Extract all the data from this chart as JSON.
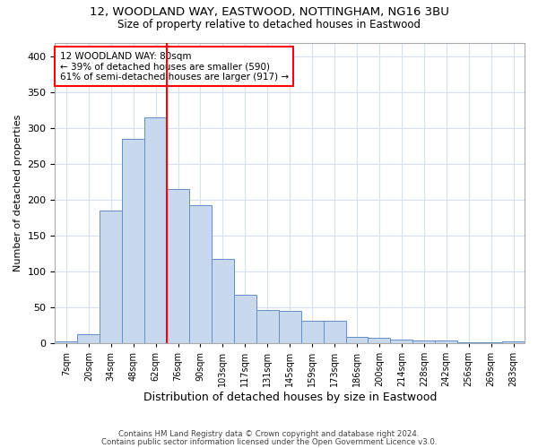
{
  "title_line1": "12, WOODLAND WAY, EASTWOOD, NOTTINGHAM, NG16 3BU",
  "title_line2": "Size of property relative to detached houses in Eastwood",
  "xlabel": "Distribution of detached houses by size in Eastwood",
  "ylabel": "Number of detached properties",
  "footer_line1": "Contains HM Land Registry data © Crown copyright and database right 2024.",
  "footer_line2": "Contains public sector information licensed under the Open Government Licence v3.0.",
  "bin_labels": [
    "7sqm",
    "20sqm",
    "34sqm",
    "48sqm",
    "62sqm",
    "76sqm",
    "90sqm",
    "103sqm",
    "117sqm",
    "131sqm",
    "145sqm",
    "159sqm",
    "173sqm",
    "186sqm",
    "200sqm",
    "214sqm",
    "228sqm",
    "242sqm",
    "256sqm",
    "269sqm",
    "283sqm"
  ],
  "bar_values": [
    2,
    13,
    185,
    285,
    315,
    215,
    193,
    118,
    68,
    46,
    45,
    31,
    31,
    9,
    7,
    5,
    4,
    4,
    1,
    1,
    2
  ],
  "bar_color": "#c8d9ee",
  "bar_edge_color": "#6090c8",
  "grid_color": "#d8e0ec",
  "vline_color": "red",
  "annotation_line1": "12 WOODLAND WAY: 80sqm",
  "annotation_line2": "← 39% of detached houses are smaller (590)",
  "annotation_line3": "61% of semi-detached houses are larger (917) →",
  "annotation_box_color": "white",
  "annotation_box_edge": "red",
  "ylim": [
    0,
    420
  ],
  "yticks": [
    0,
    50,
    100,
    150,
    200,
    250,
    300,
    350,
    400
  ],
  "background_color": "#ffffff",
  "vline_bin_index": 5
}
